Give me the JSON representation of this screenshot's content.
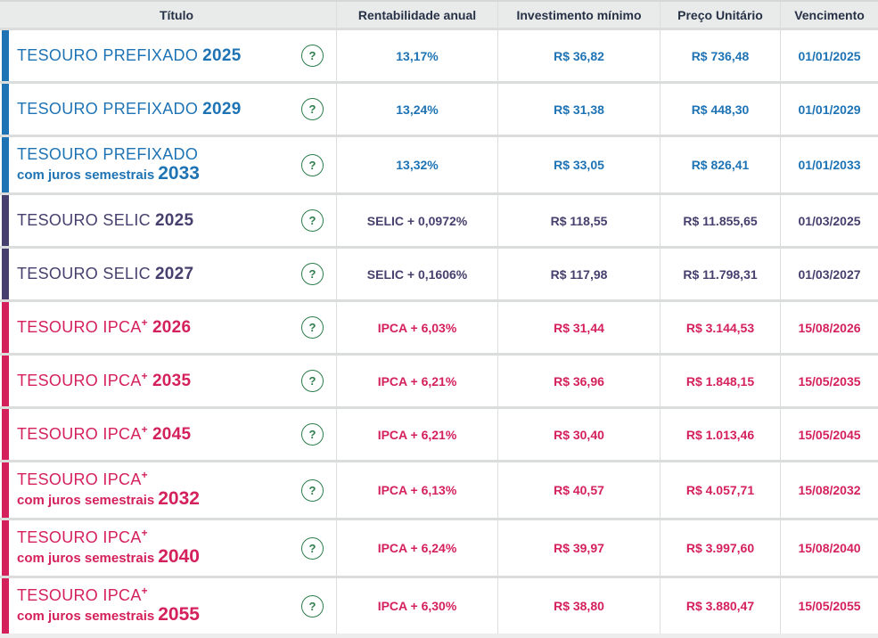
{
  "table": {
    "columns": [
      {
        "label": "Título"
      },
      {
        "label": "Rentabilidade anual"
      },
      {
        "label": "Investimento mínimo"
      },
      {
        "label": "Preço Unitário"
      },
      {
        "label": "Vencimento"
      }
    ],
    "help_icon": "?",
    "rows": [
      {
        "theme": "prefixado",
        "name": "TESOURO PREFIXADO",
        "sup": "",
        "year": "2025",
        "sub_label": "",
        "sub_year": "",
        "rate": "13,17%",
        "min_investment": "R$ 36,82",
        "unit_price": "R$ 736,48",
        "maturity": "01/01/2025"
      },
      {
        "theme": "prefixado",
        "name": "TESOURO PREFIXADO",
        "sup": "",
        "year": "2029",
        "sub_label": "",
        "sub_year": "",
        "rate": "13,24%",
        "min_investment": "R$ 31,38",
        "unit_price": "R$ 448,30",
        "maturity": "01/01/2029"
      },
      {
        "theme": "prefixado",
        "name": "TESOURO PREFIXADO",
        "sup": "",
        "year": "",
        "sub_label": "com juros semestrais",
        "sub_year": "2033",
        "rate": "13,32%",
        "min_investment": "R$ 33,05",
        "unit_price": "R$ 826,41",
        "maturity": "01/01/2033"
      },
      {
        "theme": "selic",
        "name": "TESOURO SELIC",
        "sup": "",
        "year": "2025",
        "sub_label": "",
        "sub_year": "",
        "rate": "SELIC + 0,0972%",
        "min_investment": "R$ 118,55",
        "unit_price": "R$ 11.855,65",
        "maturity": "01/03/2025"
      },
      {
        "theme": "selic",
        "name": "TESOURO SELIC",
        "sup": "",
        "year": "2027",
        "sub_label": "",
        "sub_year": "",
        "rate": "SELIC + 0,1606%",
        "min_investment": "R$ 117,98",
        "unit_price": "R$ 11.798,31",
        "maturity": "01/03/2027"
      },
      {
        "theme": "ipca",
        "name": "TESOURO IPCA",
        "sup": "+",
        "year": "2026",
        "sub_label": "",
        "sub_year": "",
        "rate": "IPCA + 6,03%",
        "min_investment": "R$ 31,44",
        "unit_price": "R$ 3.144,53",
        "maturity": "15/08/2026"
      },
      {
        "theme": "ipca",
        "name": "TESOURO IPCA",
        "sup": "+",
        "year": "2035",
        "sub_label": "",
        "sub_year": "",
        "rate": "IPCA + 6,21%",
        "min_investment": "R$ 36,96",
        "unit_price": "R$ 1.848,15",
        "maturity": "15/05/2035"
      },
      {
        "theme": "ipca",
        "name": "TESOURO IPCA",
        "sup": "+",
        "year": "2045",
        "sub_label": "",
        "sub_year": "",
        "rate": "IPCA + 6,21%",
        "min_investment": "R$ 30,40",
        "unit_price": "R$ 1.013,46",
        "maturity": "15/05/2045"
      },
      {
        "theme": "ipca",
        "name": "TESOURO IPCA",
        "sup": "+",
        "year": "",
        "sub_label": "com juros semestrais",
        "sub_year": "2032",
        "rate": "IPCA + 6,13%",
        "min_investment": "R$ 40,57",
        "unit_price": "R$ 4.057,71",
        "maturity": "15/08/2032"
      },
      {
        "theme": "ipca",
        "name": "TESOURO IPCA",
        "sup": "+",
        "year": "",
        "sub_label": "com juros semestrais",
        "sub_year": "2040",
        "rate": "IPCA + 6,24%",
        "min_investment": "R$ 39,97",
        "unit_price": "R$ 3.997,60",
        "maturity": "15/08/2040"
      },
      {
        "theme": "ipca",
        "name": "TESOURO IPCA",
        "sup": "+",
        "year": "",
        "sub_label": "com juros semestrais",
        "sub_year": "2055",
        "rate": "IPCA + 6,30%",
        "min_investment": "R$ 38,80",
        "unit_price": "R$ 3.880,47",
        "maturity": "15/05/2055"
      }
    ]
  },
  "colors": {
    "prefixado_blue": "#1e73b4",
    "selic_purple": "#47406e",
    "ipca_pink": "#d4215c",
    "help_green": "#2d7d4d",
    "header_bg": "#e9eaea"
  }
}
